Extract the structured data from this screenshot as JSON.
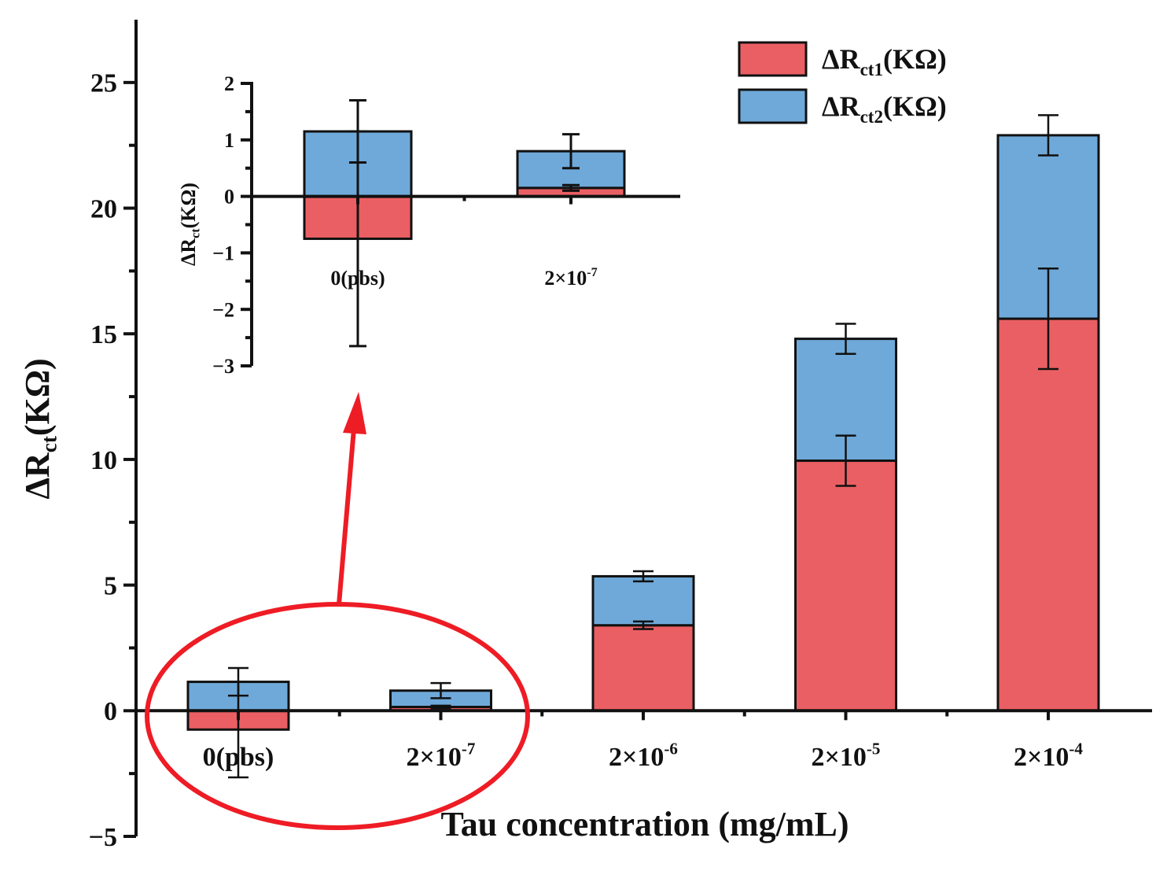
{
  "chart_data": [
    {
      "id": "main",
      "type": "bar",
      "stacked": true,
      "title": "",
      "xlabel": "Tau concentration (mg/mL)",
      "ylabel": "ΔRct(KΩ)",
      "ylabel_main": "ΔR",
      "ylabel_sub": "ct",
      "ylabel_unit": "(KΩ)",
      "ylim": [
        -5,
        27.5
      ],
      "yticks": [
        -5,
        0,
        5,
        10,
        15,
        20,
        25
      ],
      "categories": [
        {
          "base": "0(pbs)",
          "exp": ""
        },
        {
          "base": "2×10",
          "exp": "-7"
        },
        {
          "base": "2×10",
          "exp": "-6"
        },
        {
          "base": "2×10",
          "exp": "-5"
        },
        {
          "base": "2×10",
          "exp": "-4"
        }
      ],
      "series": [
        {
          "name": "ΔRct1(KΩ)",
          "name_main": "ΔR",
          "name_sub": "ct1",
          "name_unit": "(KΩ)",
          "color": "#ea5f63",
          "values": [
            -0.75,
            0.15,
            3.4,
            9.95,
            15.6
          ],
          "errors": [
            1.9,
            0.05,
            0.15,
            1.0,
            2.0
          ]
        },
        {
          "name": "ΔRct2(KΩ)",
          "name_main": "ΔR",
          "name_sub": "ct2",
          "name_unit": "(KΩ)",
          "color": "#6ea9d9",
          "values": [
            1.15,
            0.65,
            1.95,
            4.85,
            7.3
          ],
          "errors": [
            0.55,
            0.3,
            0.2,
            0.6,
            0.8
          ]
        }
      ],
      "legend": "top-right"
    },
    {
      "id": "inset",
      "type": "bar",
      "stacked": true,
      "xlabel": "",
      "ylabel": "ΔRct(KΩ)",
      "ylabel_main": "ΔR",
      "ylabel_sub": "ct",
      "ylabel_unit": "(KΩ)",
      "ylim": [
        -3,
        2
      ],
      "yticks": [
        -3,
        -2,
        -1,
        0,
        1,
        2
      ],
      "categories": [
        {
          "base": "0(pbs)",
          "exp": ""
        },
        {
          "base": "2×10",
          "exp": "-7"
        }
      ],
      "series": [
        {
          "name": "ΔRct1(KΩ)",
          "color": "#ea5f63",
          "values": [
            -0.75,
            0.15
          ],
          "errors": [
            1.9,
            0.05
          ]
        },
        {
          "name": "ΔRct2(KΩ)",
          "color": "#6ea9d9",
          "values": [
            1.15,
            0.65
          ],
          "errors": [
            0.55,
            0.3
          ]
        }
      ]
    }
  ],
  "annotation": {
    "color": "#ee1c25",
    "label": "zoom highlight"
  }
}
